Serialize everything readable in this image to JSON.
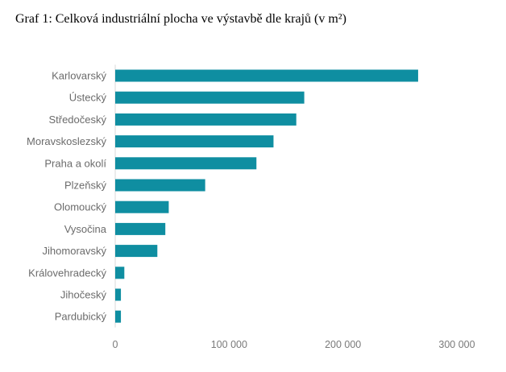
{
  "chart_data": {
    "type": "bar",
    "orientation": "horizontal",
    "title": "Graf 1: Celková industriální plocha ve výstavbě dle krajů (v m²)",
    "xlabel": "",
    "ylabel": "",
    "categories": [
      "Karlovarský",
      "Ústecký",
      "Středočeský",
      "Moravskoslezský",
      "Praha a okolí",
      "Plzeňský",
      "Olomoucký",
      "Vysočina",
      "Jihomoravský",
      "Královehradecký",
      "Jihočeský",
      "Pardubický"
    ],
    "values": [
      266000,
      166000,
      159000,
      139000,
      124000,
      79000,
      47000,
      44000,
      37000,
      8000,
      5000,
      5000
    ],
    "xlim": [
      0,
      300000
    ],
    "x_ticks": [
      0,
      100000,
      200000,
      300000
    ],
    "x_tick_labels": [
      "0",
      "100 000",
      "200 000",
      "300 000"
    ],
    "grid": false,
    "legend": "none",
    "colors": {
      "bar": "#0f8ea1",
      "axis_line": "#d9d9d9",
      "category_text": "#6b6b6b",
      "tick_text": "#7a7a7a"
    }
  }
}
